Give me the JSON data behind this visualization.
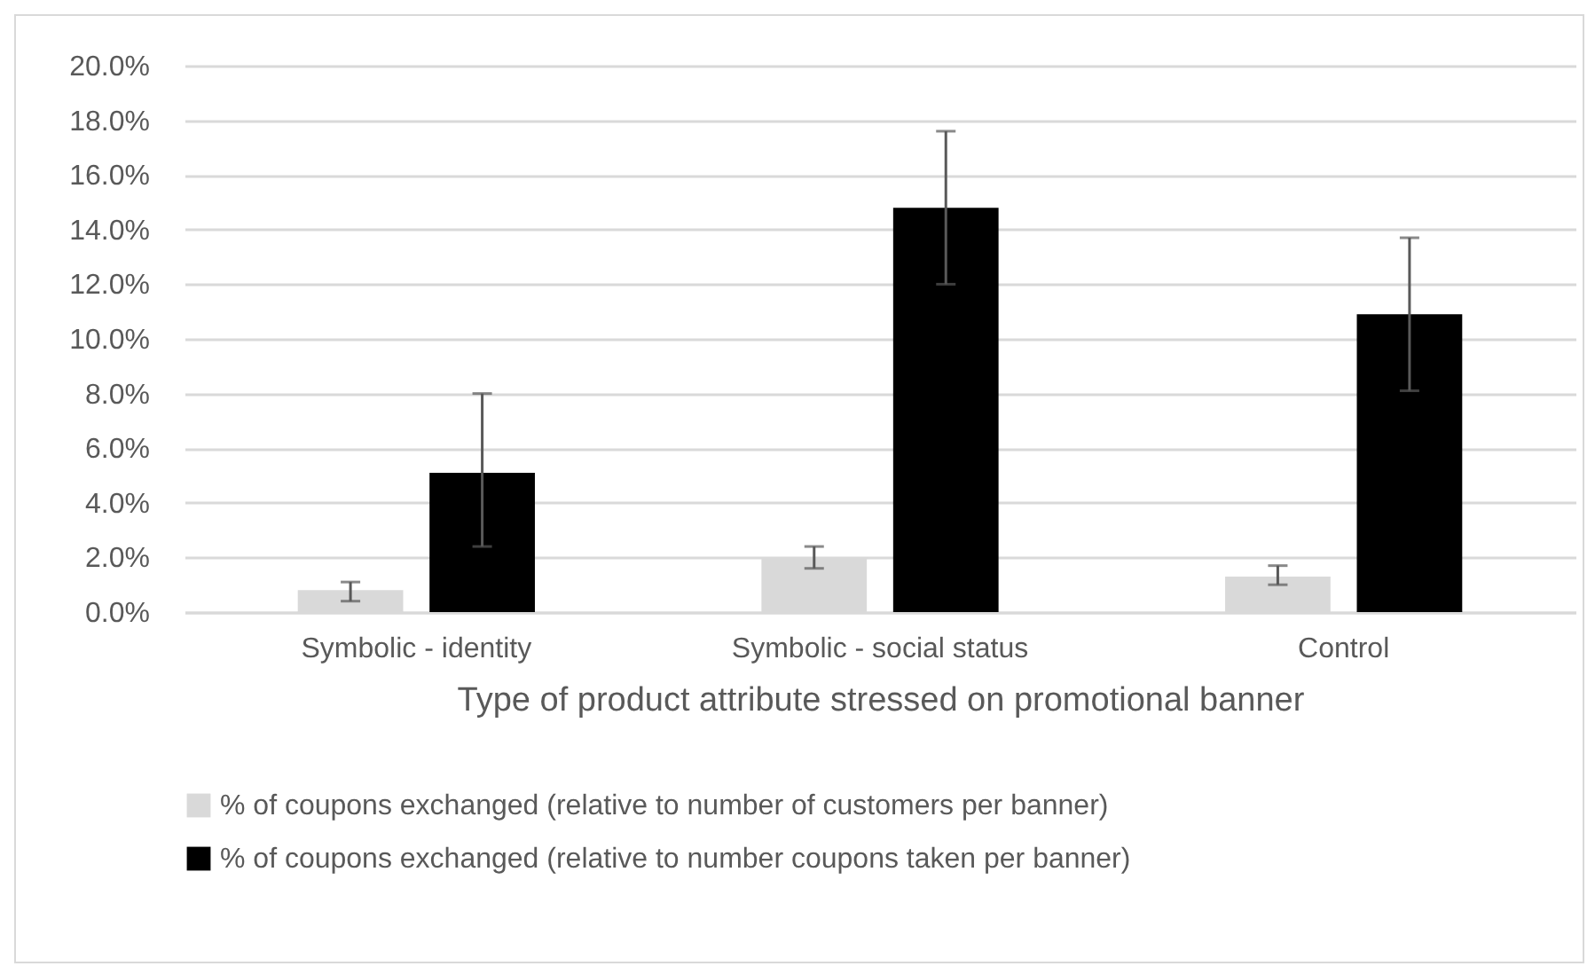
{
  "chart_data": {
    "type": "bar",
    "xlabel": "Type of product attribute stressed on promotional banner",
    "categories": [
      "Symbolic - identity",
      "Symbolic - social status",
      "Control"
    ],
    "series": [
      {
        "name": "% of coupons exchanged (relative to number of customers per banner)",
        "color": "#d9d9d9",
        "values": [
          0.8,
          2.0,
          1.3
        ],
        "errors": [
          [
            0.4,
            1.1
          ],
          [
            1.6,
            2.4
          ],
          [
            1.0,
            1.7
          ]
        ]
      },
      {
        "name": "% of coupons exchanged (relative to number coupons taken per banner)",
        "color": "#000000",
        "values": [
          5.1,
          14.8,
          10.9
        ],
        "errors": [
          [
            2.4,
            8.0
          ],
          [
            12.0,
            17.6
          ],
          [
            8.1,
            13.7
          ]
        ]
      }
    ],
    "ylim": [
      0,
      20
    ],
    "yticks": [
      {
        "value": 0,
        "label": "0.0%"
      },
      {
        "value": 2,
        "label": "2.0%"
      },
      {
        "value": 4,
        "label": "4.0%"
      },
      {
        "value": 6,
        "label": "6.0%"
      },
      {
        "value": 8,
        "label": "8.0%"
      },
      {
        "value": 10,
        "label": "10.0%"
      },
      {
        "value": 12,
        "label": "12.0%"
      },
      {
        "value": 14,
        "label": "14.0%"
      },
      {
        "value": 16,
        "label": "16.0%"
      },
      {
        "value": 18,
        "label": "18.0%"
      },
      {
        "value": 20,
        "label": "20.0%"
      }
    ],
    "grid": "y",
    "legend": "bottom"
  }
}
